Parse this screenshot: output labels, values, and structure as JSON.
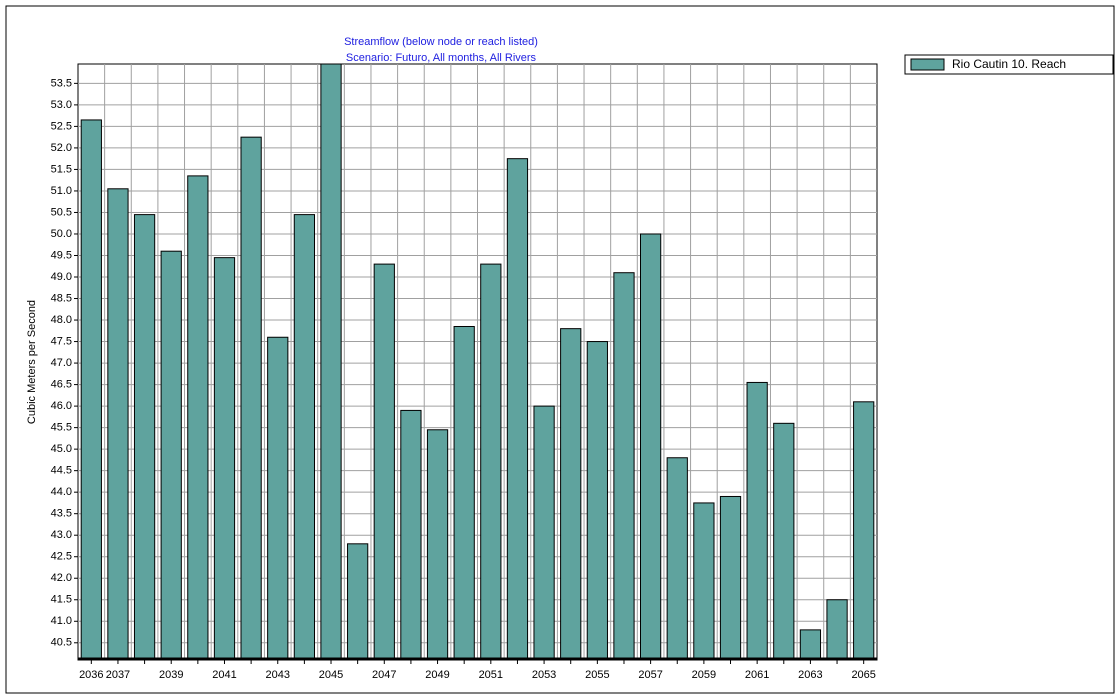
{
  "chart_data": {
    "type": "bar",
    "title": "Streamflow  (below node or reach listed)",
    "subtitle": "Scenario: Futuro,  All months,  All Rivers",
    "y_label": "Cubic Meters per Second",
    "categories": [
      "2036",
      "2037",
      null,
      "2039",
      null,
      "2041",
      null,
      "2043",
      null,
      "2045",
      null,
      "2047",
      null,
      "2049",
      null,
      "2051",
      null,
      "2053",
      null,
      "2055",
      null,
      "2057",
      null,
      "2059",
      null,
      "2061",
      null,
      "2063",
      null,
      "2065"
    ],
    "series": [
      {
        "name": "Rio Cautin 10. Reach",
        "color": "#5fa39e",
        "values": [
          52.65,
          51.05,
          50.45,
          49.6,
          51.35,
          49.45,
          52.25,
          47.6,
          50.45,
          53.95,
          42.8,
          49.3,
          45.9,
          45.45,
          47.85,
          49.3,
          51.75,
          46.0,
          47.8,
          47.5,
          49.1,
          50.0,
          44.8,
          43.75,
          43.9,
          46.55,
          45.6,
          40.8,
          41.5,
          46.1
        ]
      }
    ],
    "ylim": [
      40.1,
      53.95
    ],
    "yticks": [
      {
        "value": 40.5,
        "label": "40.5"
      },
      {
        "value": 41,
        "label": "41.0"
      },
      {
        "value": 41.5,
        "label": "41.5"
      },
      {
        "value": 42,
        "label": "42.0"
      },
      {
        "value": 42.5,
        "label": "42.5"
      },
      {
        "value": 43,
        "label": "43.0"
      },
      {
        "value": 43.5,
        "label": "43.5"
      },
      {
        "value": 44,
        "label": "44.0"
      },
      {
        "value": 44.5,
        "label": "44.5"
      },
      {
        "value": 45,
        "label": "45.0"
      },
      {
        "value": 45.5,
        "label": "45.5"
      },
      {
        "value": 46,
        "label": "46.0"
      },
      {
        "value": 46.5,
        "label": "46.5"
      },
      {
        "value": 47,
        "label": "47.0"
      },
      {
        "value": 47.5,
        "label": "47.5"
      },
      {
        "value": 48,
        "label": "48.0"
      },
      {
        "value": 48.5,
        "label": "48.5"
      },
      {
        "value": 49,
        "label": "49.0"
      },
      {
        "value": 49.5,
        "label": "49.5"
      },
      {
        "value": 50,
        "label": "50.0"
      },
      {
        "value": 50.5,
        "label": "50.5"
      },
      {
        "value": 51,
        "label": "51.0"
      },
      {
        "value": 51.5,
        "label": "51.5"
      },
      {
        "value": 52,
        "label": "52.0"
      },
      {
        "value": 52.5,
        "label": "52.5"
      },
      {
        "value": 53,
        "label": "53.0"
      },
      {
        "value": 53.5,
        "label": "53.5"
      }
    ],
    "grid": true,
    "legend": "right"
  }
}
